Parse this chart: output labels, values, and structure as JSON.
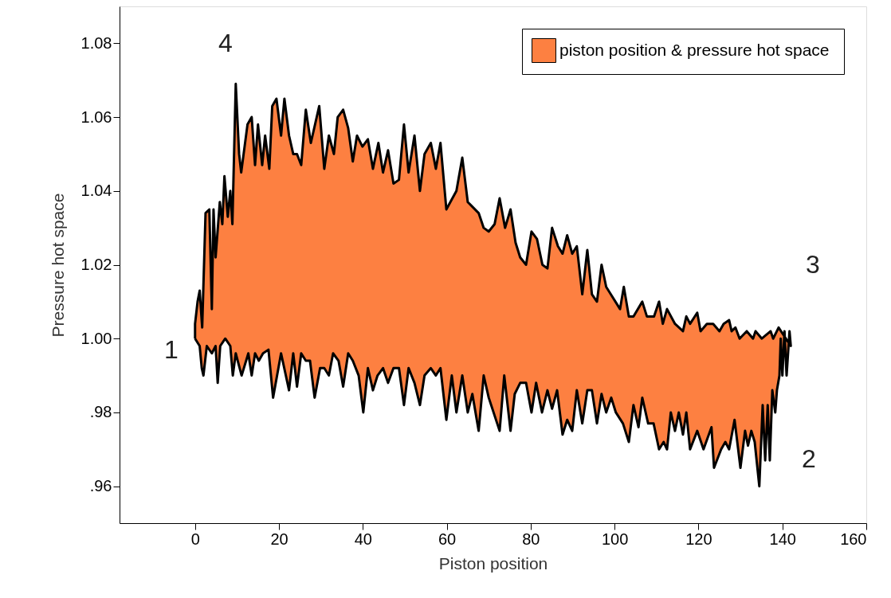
{
  "chart_data": {
    "type": "area",
    "xlabel": "Piston position",
    "ylabel": "Pressure hot space",
    "xlim": [
      -18,
      160
    ],
    "xticks": [
      0,
      20,
      40,
      60,
      80,
      100,
      120,
      140,
      160
    ],
    "ylim": [
      0.95,
      1.09
    ],
    "yticks": [
      {
        "value": 0.96,
        "label": ".96"
      },
      {
        "value": 0.98,
        "label": ".98"
      },
      {
        "value": 1.0,
        "label": "1.00"
      },
      {
        "value": 1.02,
        "label": "1.02"
      },
      {
        "value": 1.04,
        "label": "1.04"
      },
      {
        "value": 1.06,
        "label": "1.06"
      },
      {
        "value": 1.08,
        "label": "1.08"
      }
    ],
    "grid": false,
    "legend": "top right",
    "annotations": [
      "1",
      "2",
      "3",
      "4"
    ],
    "series": [
      {
        "name": "piston  position & pressure hot space",
        "color": "#fd8041",
        "x": [
          0,
          1.1,
          1.6,
          2.0,
          2.8,
          4.0,
          4.9,
          5.4,
          6.0,
          7.2,
          8.4,
          9.0,
          9.7,
          11.1,
          12.7,
          13.5,
          14.3,
          15.2,
          16.2,
          17.5,
          18.6,
          20.5,
          22.4,
          23.4,
          24.3,
          25.3,
          26.4,
          27.4,
          28.5,
          29.8,
          30.8,
          31.9,
          32.9,
          34.2,
          35.3,
          36.5,
          37.6,
          39.0,
          40.1,
          41.2,
          42.4,
          43.5,
          44.8,
          46.0,
          47.3,
          48.6,
          49.8,
          50.9,
          52.3,
          53.6,
          54.7,
          56.2,
          57.4,
          58.5,
          59.9,
          61.2,
          62.3,
          63.7,
          65.0,
          66.1,
          67.6,
          68.8,
          70.0,
          72.6,
          73.7,
          75.2,
          76.2,
          77.5,
          78.9,
          80.2,
          81.3,
          82.7,
          84.0,
          85.1,
          86.3,
          87.6,
          88.7,
          89.9,
          91.0,
          92.3,
          93.5,
          94.6,
          95.8,
          96.9,
          98.0,
          99.2,
          100.3,
          102.0,
          103.4,
          104.5,
          105.7,
          106.6,
          108.0,
          109.3,
          110.6,
          111.7,
          112.5,
          113.4,
          114.4,
          115.3,
          116.3,
          117.1,
          118.0,
          119.7,
          121.2,
          123.1,
          123.7,
          125.4,
          126.4,
          127.3,
          128.6,
          130.0,
          131.1,
          131.8,
          132.6,
          133.4,
          134.5,
          135.3,
          135.9,
          136.5,
          137.0,
          137.6,
          138.3,
          138.7,
          139.3,
          139.6,
          140.0,
          140.5,
          141.0,
          141.7,
          142.0,
          139.1,
          137.8,
          137.2,
          135.1,
          133.6,
          133.0,
          131.5,
          129.8,
          128.8,
          127.9,
          127.3,
          126.0,
          125.0,
          123.5,
          122.0,
          120.5,
          119.7,
          118.0,
          117.1,
          116.3,
          114.4,
          112.5,
          111.5,
          110.6,
          109.4,
          107.7,
          106.6,
          104.5,
          103.4,
          102.2,
          101.3,
          98.0,
          96.9,
          95.8,
          94.6,
          93.5,
          92.3,
          91.0,
          89.9,
          88.7,
          87.6,
          86.5,
          85.1,
          84.0,
          82.8,
          81.5,
          80.2,
          78.9,
          77.5,
          76.4,
          75.2,
          73.9,
          72.6,
          71.4,
          70.0,
          68.8,
          67.6,
          65.0,
          63.7,
          62.3,
          59.9,
          58.5,
          57.4,
          56.2,
          54.7,
          53.6,
          52.3,
          50.9,
          49.8,
          48.6,
          47.3,
          46.0,
          44.8,
          43.7,
          42.4,
          41.2,
          39.9,
          38.6,
          37.6,
          36.5,
          35.3,
          34.0,
          33.1,
          31.9,
          30.8,
          29.6,
          27.6,
          26.4,
          25.3,
          24.3,
          23.4,
          22.4,
          21.3,
          20.5,
          19.4,
          18.4,
          17.7,
          16.7,
          16.0,
          15.0,
          14.3,
          13.5,
          12.5,
          11.0,
          10.5,
          9.7,
          8.9,
          8.4,
          7.8,
          7.0,
          6.5,
          5.9,
          4.9,
          4.4,
          4.0,
          3.4,
          2.5,
          1.7,
          1.1,
          0.6,
          0,
          0
        ],
        "values": [
          1.0,
          0.998,
          0.992,
          0.99,
          0.998,
          0.996,
          0.998,
          0.988,
          0.998,
          1.0,
          0.998,
          0.99,
          0.996,
          0.99,
          0.996,
          0.99,
          0.996,
          0.994,
          0.996,
          0.997,
          0.984,
          0.996,
          0.986,
          0.996,
          0.987,
          0.996,
          0.994,
          0.994,
          0.984,
          0.992,
          0.992,
          0.99,
          0.996,
          0.994,
          0.987,
          0.996,
          0.994,
          0.99,
          0.98,
          0.992,
          0.986,
          0.99,
          0.992,
          0.988,
          0.992,
          0.992,
          0.982,
          0.992,
          0.988,
          0.982,
          0.99,
          0.992,
          0.99,
          0.992,
          0.978,
          0.99,
          0.98,
          0.99,
          0.98,
          0.985,
          0.975,
          0.99,
          0.984,
          0.975,
          0.99,
          0.975,
          0.985,
          0.988,
          0.988,
          0.98,
          0.988,
          0.98,
          0.986,
          0.981,
          0.986,
          0.974,
          0.978,
          0.975,
          0.986,
          0.977,
          0.986,
          0.986,
          0.977,
          0.985,
          0.98,
          0.984,
          0.98,
          0.977,
          0.972,
          0.982,
          0.976,
          0.984,
          0.977,
          0.977,
          0.97,
          0.972,
          0.97,
          0.98,
          0.975,
          0.98,
          0.974,
          0.98,
          0.97,
          0.975,
          0.97,
          0.976,
          0.965,
          0.97,
          0.972,
          0.97,
          0.978,
          0.965,
          0.975,
          0.971,
          0.975,
          0.972,
          0.96,
          0.982,
          0.967,
          0.982,
          0.967,
          0.986,
          0.98,
          0.986,
          0.99,
          1.0,
          0.99,
          1.002,
          0.99,
          1.002,
          0.998,
          1.003,
          1.0,
          1.002,
          1.0,
          1.002,
          1.0,
          1.002,
          1.0,
          1.003,
          1.002,
          1.005,
          1.004,
          1.002,
          1.004,
          1.004,
          1.002,
          1.007,
          1.004,
          1.006,
          1.002,
          1.004,
          1.008,
          1.004,
          1.01,
          1.006,
          1.006,
          1.01,
          1.006,
          1.006,
          1.014,
          1.008,
          1.014,
          1.02,
          1.01,
          1.012,
          1.024,
          1.012,
          1.025,
          1.023,
          1.028,
          1.023,
          1.025,
          1.03,
          1.019,
          1.02,
          1.027,
          1.029,
          1.02,
          1.022,
          1.026,
          1.035,
          1.03,
          1.038,
          1.031,
          1.029,
          1.03,
          1.034,
          1.037,
          1.049,
          1.04,
          1.035,
          1.053,
          1.046,
          1.053,
          1.05,
          1.04,
          1.055,
          1.045,
          1.058,
          1.043,
          1.042,
          1.051,
          1.045,
          1.053,
          1.046,
          1.054,
          1.052,
          1.055,
          1.048,
          1.057,
          1.062,
          1.06,
          1.05,
          1.055,
          1.046,
          1.063,
          1.053,
          1.062,
          1.047,
          1.05,
          1.05,
          1.055,
          1.065,
          1.055,
          1.065,
          1.063,
          1.046,
          1.055,
          1.047,
          1.058,
          1.047,
          1.06,
          1.058,
          1.045,
          1.05,
          1.069,
          1.031,
          1.04,
          1.033,
          1.044,
          1.031,
          1.037,
          1.022,
          1.035,
          1.008,
          1.035,
          1.034,
          1.003,
          1.013,
          1.01,
          1.004,
          1.0
        ]
      }
    ]
  }
}
